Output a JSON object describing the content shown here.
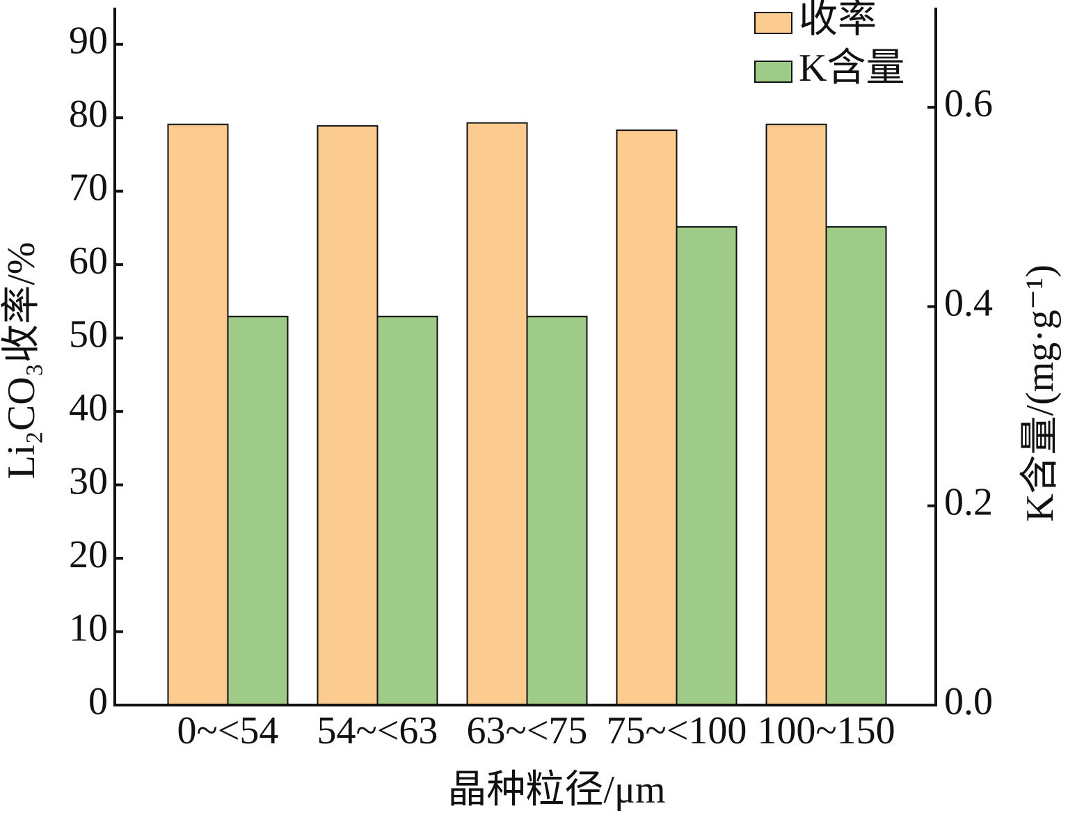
{
  "chart_data": {
    "type": "bar",
    "categories": [
      "0~<54",
      "54~<63",
      "63~<75",
      "75~<100",
      "100~150"
    ],
    "series": [
      {
        "name": "收率",
        "color": "#fccb90",
        "values": [
          79.1,
          78.9,
          79.3,
          78.3,
          79.1
        ]
      },
      {
        "name": "K含量",
        "color": "#9fcb89",
        "values": [
          0.39,
          0.39,
          0.39,
          0.48,
          0.48
        ],
        "axis": "y2"
      }
    ],
    "xlabel": "晶种粒径/μm",
    "ylabel": "Li₂CO₃收率/%",
    "y2label": "K含量/(mg·g⁻¹)",
    "ylim": [
      0,
      95
    ],
    "yticks": [
      0,
      10,
      20,
      30,
      40,
      50,
      60,
      70,
      80,
      90
    ],
    "y2lim": [
      0,
      0.7
    ],
    "y2ticks": [
      {
        "value": 0,
        "label": "0.0"
      },
      {
        "value": 0.2,
        "label": "0.2"
      },
      {
        "value": 0.4,
        "label": "0.4"
      },
      {
        "value": 0.6,
        "label": "0.6"
      }
    ],
    "legend": "upper right"
  }
}
